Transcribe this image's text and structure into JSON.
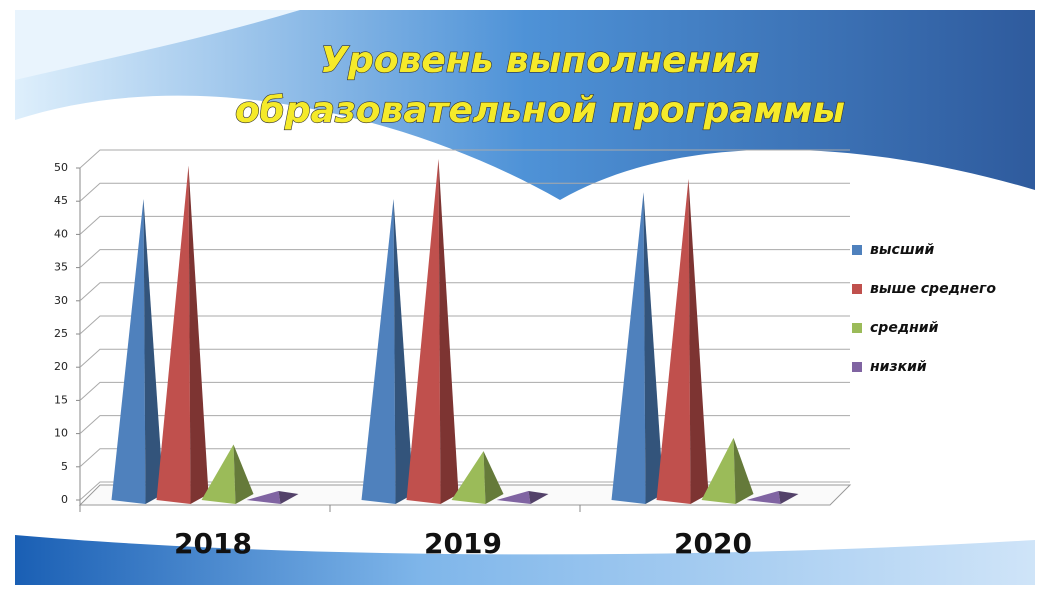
{
  "chart_data": {
    "type": "pyramid",
    "title": [
      "Уровень выполнения",
      "образовательной программы"
    ],
    "categories": [
      "2018",
      "2019",
      "2020"
    ],
    "series": [
      {
        "name": "высший",
        "color": "#4f81bd",
        "values": [
          44,
          44,
          45
        ]
      },
      {
        "name": "выше среднего",
        "color": "#c0504d",
        "values": [
          49,
          50,
          47
        ]
      },
      {
        "name": "средний",
        "color": "#9bbb59",
        "values": [
          7,
          6,
          8
        ]
      },
      {
        "name": "низкий",
        "color": "#8064a2",
        "values": [
          0,
          0,
          0
        ]
      }
    ],
    "ylim": [
      0,
      50
    ],
    "yticks": [
      0,
      5,
      10,
      15,
      20,
      25,
      30,
      35,
      40,
      45,
      50
    ],
    "grid": true,
    "legend": "right"
  }
}
